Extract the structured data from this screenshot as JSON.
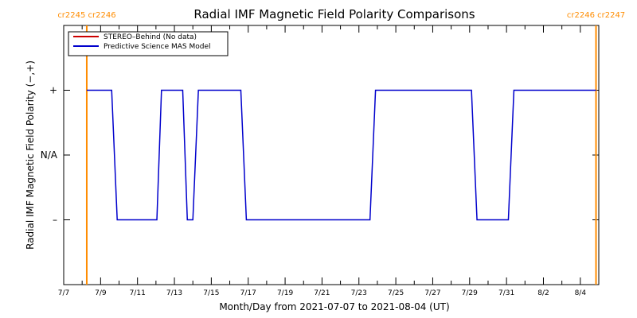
{
  "chart_data": {
    "type": "line",
    "title": "Radial IMF Magnetic Field Polarity Comparisons",
    "xlabel": "Month/Day from 2021-07-07 to 2021-08-04 (UT)",
    "ylabel": "Radial IMF Magnetic Field Polarity (−,+)",
    "xlim": [
      0,
      29
    ],
    "ylim": [
      -1,
      1
    ],
    "x_ticks": [
      {
        "day": 0,
        "label": "7/7"
      },
      {
        "day": 2,
        "label": "7/9"
      },
      {
        "day": 4,
        "label": "7/11"
      },
      {
        "day": 6,
        "label": "7/13"
      },
      {
        "day": 8,
        "label": "7/15"
      },
      {
        "day": 10,
        "label": "7/17"
      },
      {
        "day": 12,
        "label": "7/19"
      },
      {
        "day": 14,
        "label": "7/21"
      },
      {
        "day": 16,
        "label": "7/23"
      },
      {
        "day": 18,
        "label": "7/25"
      },
      {
        "day": 20,
        "label": "7/27"
      },
      {
        "day": 22,
        "label": "7/29"
      },
      {
        "day": 24,
        "label": "7/31"
      },
      {
        "day": 26,
        "label": "8/2"
      },
      {
        "day": 28,
        "label": "8/4"
      }
    ],
    "y_ticks": [
      {
        "value": 0.5,
        "label": "+"
      },
      {
        "value": 0,
        "label": "N/A"
      },
      {
        "value": -0.5,
        "label": "–"
      }
    ],
    "series": [
      {
        "name": "STEREO–Behind (No data)",
        "color": "#cc0000",
        "x": [],
        "y": []
      },
      {
        "name": "Predictive Science MAS Model",
        "color": "#0000cc",
        "x": [
          1.25,
          2.6,
          2.9,
          5.05,
          5.3,
          6.45,
          6.7,
          7.0,
          7.3,
          9.6,
          9.9,
          16.6,
          16.9,
          22.1,
          22.4,
          24.1,
          24.4,
          28.85
        ],
        "y": [
          0.5,
          0.5,
          -0.5,
          -0.5,
          0.5,
          0.5,
          -0.5,
          -0.5,
          0.5,
          0.5,
          -0.5,
          -0.5,
          0.5,
          0.5,
          -0.5,
          -0.5,
          0.5,
          0.5
        ]
      }
    ],
    "carrington_markers": [
      {
        "day": 1.25,
        "labels": [
          "cr2245",
          "cr2246"
        ]
      },
      {
        "day": 28.85,
        "labels": [
          "cr2246",
          "cr2247"
        ]
      }
    ],
    "marker_color": "#ff8c00",
    "grid": false,
    "legend_position": "top-left"
  }
}
